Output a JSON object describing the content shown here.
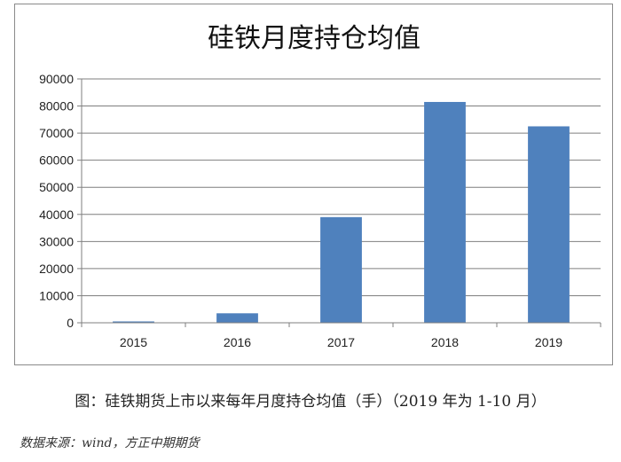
{
  "chart_data": {
    "type": "bar",
    "title": "硅铁月度持仓均值",
    "categories": [
      "2015",
      "2016",
      "2017",
      "2018",
      "2019"
    ],
    "values": [
      500,
      3500,
      39000,
      81500,
      72500
    ],
    "ylim": [
      0,
      90000
    ],
    "yticks": [
      0,
      10000,
      20000,
      30000,
      40000,
      50000,
      60000,
      70000,
      80000,
      90000
    ],
    "grid": true,
    "bar_color": "#4f81bd"
  },
  "caption": "图：硅铁期货上市以来每年月度持仓均值（手）（2019 年为 1-10 月）",
  "source": "数据来源：wind，方正中期期货"
}
